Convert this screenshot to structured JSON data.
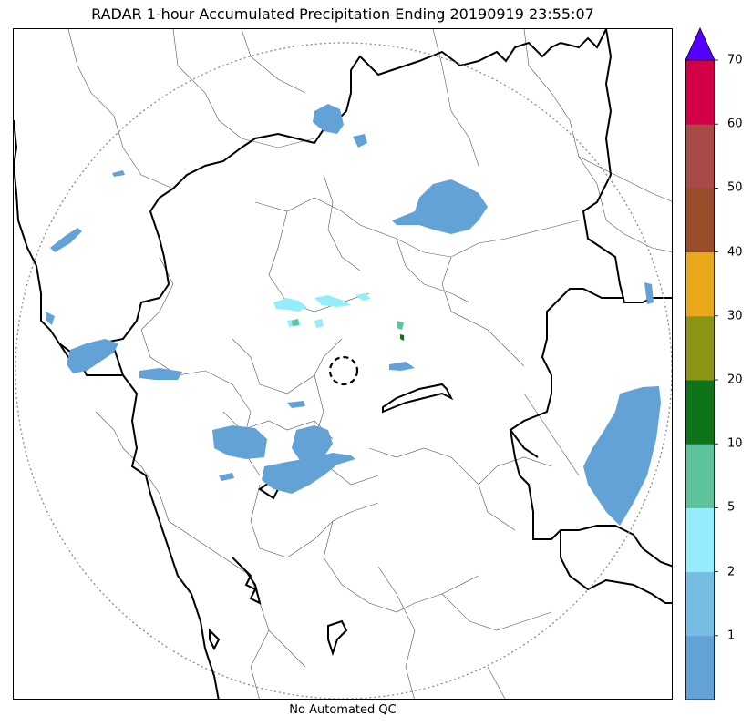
{
  "title": "RADAR 1-hour Accumulated Precipitation Ending 20190919 23:55:07",
  "footer_note": "No Automated QC",
  "colorbar": {
    "extend": "max",
    "extend_color": "#5500ff",
    "bins": [
      {
        "color": "#62a2d6"
      },
      {
        "color": "#76bde3"
      },
      {
        "color": "#94ecfd"
      },
      {
        "color": "#5ec39c"
      },
      {
        "color": "#0e7319"
      },
      {
        "color": "#8c9418"
      },
      {
        "color": "#e9a91b"
      },
      {
        "color": "#9a4d2a"
      },
      {
        "color": "#a84a45"
      },
      {
        "color": "#d30047"
      }
    ],
    "tick_labels": [
      "1",
      "2",
      "5",
      "10",
      "20",
      "30",
      "40",
      "50",
      "60",
      "70"
    ]
  },
  "map": {
    "range_ring": "dotted",
    "radar_site_marker": "dashed-circle",
    "precip_color": "#62a2d6",
    "light_precip_color": "#94ecfd",
    "boundary_colors": {
      "state": "#000000",
      "district": "#555555"
    }
  }
}
